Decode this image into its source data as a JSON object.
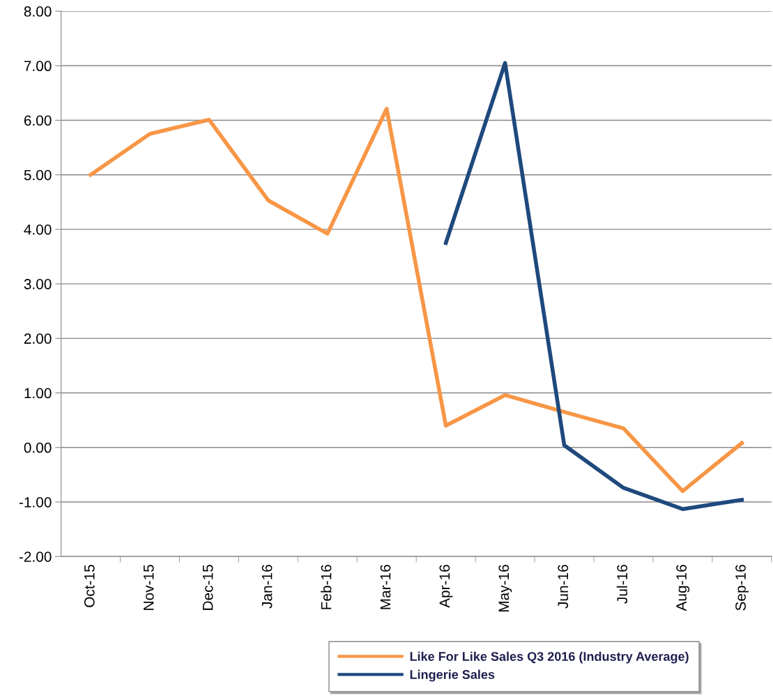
{
  "chart_data": {
    "type": "line",
    "categories": [
      "Oct-15",
      "Nov-15",
      "Dec-15",
      "Jan-16",
      "Feb-16",
      "Mar-16",
      "Apr-16",
      "May-16",
      "Jun-16",
      "Jul-16",
      "Aug-16",
      "Sep-16"
    ],
    "series": [
      {
        "name": "Like For Like Sales Q3 2016 (Industry Average)",
        "color": "#f79646",
        "values": [
          5.0,
          5.75,
          6.01,
          4.53,
          3.92,
          6.21,
          0.4,
          0.96,
          0.65,
          0.35,
          -0.8,
          0.08
        ]
      },
      {
        "name": "Lingerie Sales",
        "color": "#1f497d",
        "values": [
          null,
          null,
          null,
          null,
          null,
          null,
          3.75,
          7.05,
          0.04,
          -0.74,
          -1.13,
          -0.96
        ]
      }
    ],
    "ylim": [
      -2,
      8
    ],
    "yticks": [
      {
        "value": -2,
        "label": "-2.00"
      },
      {
        "value": -1,
        "label": "-1.00"
      },
      {
        "value": 0,
        "label": "0.00"
      },
      {
        "value": 1,
        "label": "1.00"
      },
      {
        "value": 2,
        "label": "2.00"
      },
      {
        "value": 3,
        "label": "3.00"
      },
      {
        "value": 4,
        "label": "4.00"
      },
      {
        "value": 5,
        "label": "5.00"
      },
      {
        "value": 6,
        "label": "6.00"
      },
      {
        "value": 7,
        "label": "7.00"
      },
      {
        "value": 8,
        "label": "8.00"
      }
    ],
    "grid": "y",
    "legend": "bottom",
    "marker": "none",
    "line_style": "solid"
  }
}
